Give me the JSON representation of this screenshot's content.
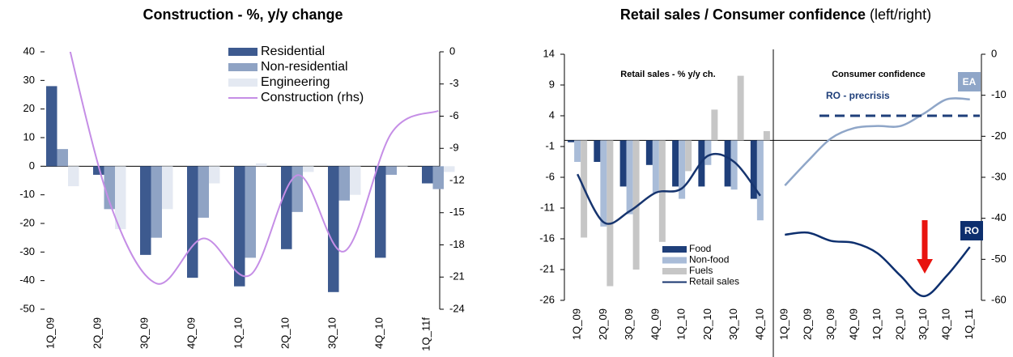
{
  "heading": {
    "title": "Retail sales / Consumer confidence",
    "note": "(left/right)"
  },
  "chart_data": [
    {
      "type": "bar",
      "title": "Construction - %, y/y change",
      "categories": [
        "1Q_09",
        "2Q_09",
        "3Q_09",
        "4Q_09",
        "1Q_10",
        "2Q_10",
        "3Q_10",
        "4Q_10",
        "1Q_11f"
      ],
      "series": [
        {
          "name": "Residential",
          "color": "#3d5a8f",
          "values": [
            28,
            -3,
            -31,
            -39,
            -42,
            -29,
            -44,
            -32,
            -6
          ]
        },
        {
          "name": "Non-residential",
          "color": "#8fa3c4",
          "values": [
            6,
            -15,
            -25,
            -18,
            -32,
            -16,
            -12,
            -3,
            -8
          ]
        },
        {
          "name": "Engineering",
          "color": "#e4e9f2",
          "values": [
            -7,
            -22,
            -15,
            -6,
            1,
            -2,
            -10,
            0,
            -2
          ]
        },
        {
          "name": "Construction (rhs)",
          "color": "#c58ee6",
          "type": "line",
          "axis": "y2",
          "values": [
            3,
            -14,
            -21.6,
            -17.4,
            -20.8,
            -11.5,
            -18.6,
            -7.6,
            -5.5
          ]
        }
      ],
      "ylim": [
        -50,
        40
      ],
      "yticks": [
        -50,
        -40,
        -30,
        -20,
        -10,
        0,
        10,
        20,
        30,
        40
      ],
      "y2lim": [
        -24,
        0
      ],
      "y2ticks": [
        -24,
        -21,
        -18,
        -15,
        -12,
        -9,
        -6,
        -3,
        0
      ],
      "legend": "upper center"
    },
    {
      "type": "bar",
      "title": "Retail sales - % y/y ch.",
      "categories": [
        "1Q_09",
        "2Q_09",
        "3Q_09",
        "4Q_09",
        "1Q_10",
        "2Q_10",
        "3Q_10",
        "4Q_10"
      ],
      "series": [
        {
          "name": "Food",
          "color": "#1f3f7a",
          "values": [
            -0.3,
            -3.5,
            -7.5,
            -4,
            -7.5,
            -7.5,
            -7.5,
            -9.5
          ]
        },
        {
          "name": "Non-food",
          "color": "#a9bcd8",
          "values": [
            -3.5,
            -14,
            -12,
            -8.5,
            -9.5,
            -4,
            -8,
            -13
          ]
        },
        {
          "name": "Fuels",
          "color": "#c6c6c6",
          "values": [
            -15.8,
            -23.7,
            -21,
            -16.5,
            -5,
            5,
            10.5,
            1.5
          ]
        },
        {
          "name": "Retail sales",
          "color": "#17356f",
          "type": "line",
          "values": [
            -5.5,
            -13.3,
            -11.5,
            -8.5,
            -7.8,
            -2.5,
            -3.5,
            -9
          ]
        }
      ],
      "ylim": [
        -26,
        14
      ],
      "yticks": [
        -26,
        -21,
        -16,
        -11,
        -6,
        -1,
        4,
        9,
        14
      ],
      "legend": "lower right"
    },
    {
      "type": "line",
      "title": "Consumer confidence",
      "categories": [
        "1Q_09",
        "2Q_09",
        "3Q_09",
        "4Q_09",
        "1Q_10",
        "2Q_10",
        "3Q_10",
        "4Q_10",
        "1Q_11"
      ],
      "series": [
        {
          "name": "EA",
          "color": "#8fa6c8",
          "axis": "y2",
          "values": [
            -32,
            -26,
            -20.5,
            -18,
            -17.5,
            -17.5,
            -14.5,
            -11,
            -11
          ]
        },
        {
          "name": "RO",
          "color": "#0d2f6e",
          "axis": "y2",
          "values": [
            -44,
            -43.5,
            -45.5,
            -46,
            -48.5,
            -54,
            -59,
            -54,
            -47
          ]
        }
      ],
      "y2lim": [
        -60,
        0
      ],
      "y2ticks": [
        -60,
        -50,
        -40,
        -30,
        -20,
        -10,
        0
      ],
      "reference_lines": [
        {
          "label": "RO - precrisis",
          "value": -15
        }
      ]
    }
  ]
}
